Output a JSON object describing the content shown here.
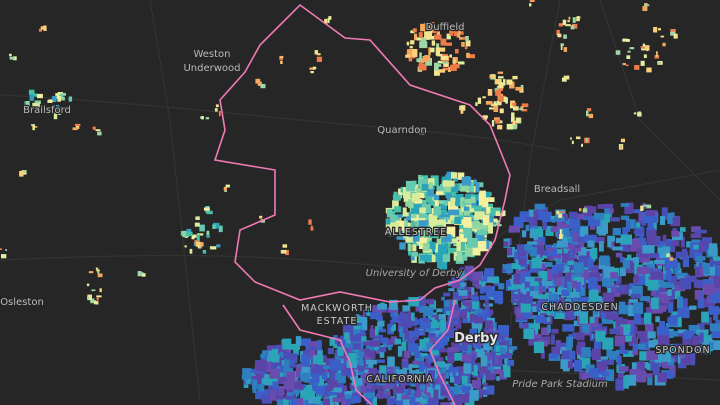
{
  "labels": [
    {
      "lines": [
        "Duffield"
      ]
    },
    {
      "lines": [
        "Weston",
        "Underwood"
      ]
    },
    {
      "lines": [
        "Brailsford"
      ]
    },
    {
      "lines": [
        "Quarndon"
      ]
    },
    {
      "lines": [
        "Breadsall"
      ]
    },
    {
      "lines": [
        "ALLESTREE"
      ]
    },
    {
      "lines": [
        "University of Derby"
      ]
    },
    {
      "lines": [
        "MACKWORTH",
        "ESTATE"
      ]
    },
    {
      "lines": [
        "CHADDESDEN"
      ]
    },
    {
      "lines": [
        "Derby"
      ]
    },
    {
      "lines": [
        "SPONDON"
      ]
    },
    {
      "lines": [
        "CALIFORNIA"
      ]
    },
    {
      "lines": [
        "Pride Park Stadium"
      ]
    },
    {
      "lines": [
        "Osleston"
      ]
    }
  ]
}
